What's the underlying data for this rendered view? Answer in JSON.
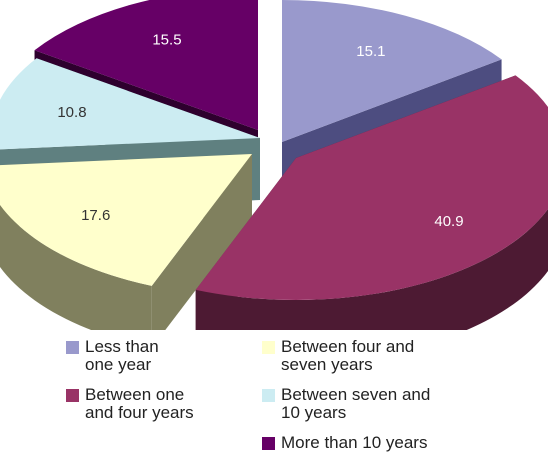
{
  "chart_data": {
    "type": "pie",
    "style": "3d-exploded",
    "slices": [
      {
        "name": "Less than one year",
        "legend_label": "Less than\none year",
        "value": 15.1,
        "label": "15.1",
        "color": "#9999cc",
        "side_color": "#4d4d80",
        "label_color": "#ffffff"
      },
      {
        "name": "Between one and four years",
        "legend_label": "Between one\nand four years",
        "value": 40.9,
        "label": "40.9",
        "color": "#993366",
        "side_color": "#4d1a33",
        "label_color": "#ffffff"
      },
      {
        "name": "Between four and seven years",
        "legend_label": "Between four and\nseven years",
        "value": 17.6,
        "label": "17.6",
        "color": "#ffffcc",
        "side_color": "#80805e",
        "label_color": "#333333"
      },
      {
        "name": "Between seven and 10 years",
        "legend_label": "Between seven and\n10 years",
        "value": 10.8,
        "label": "10.8",
        "color": "#ccecf2",
        "side_color": "#5f8080",
        "label_color": "#333333"
      },
      {
        "name": "More than 10 years",
        "legend_label": "More than 10 years",
        "value": 15.5,
        "label": "15.5",
        "color": "#660066",
        "side_color": "#2e002e",
        "label_color": "#ffffff"
      }
    ],
    "legend": "bottom"
  }
}
